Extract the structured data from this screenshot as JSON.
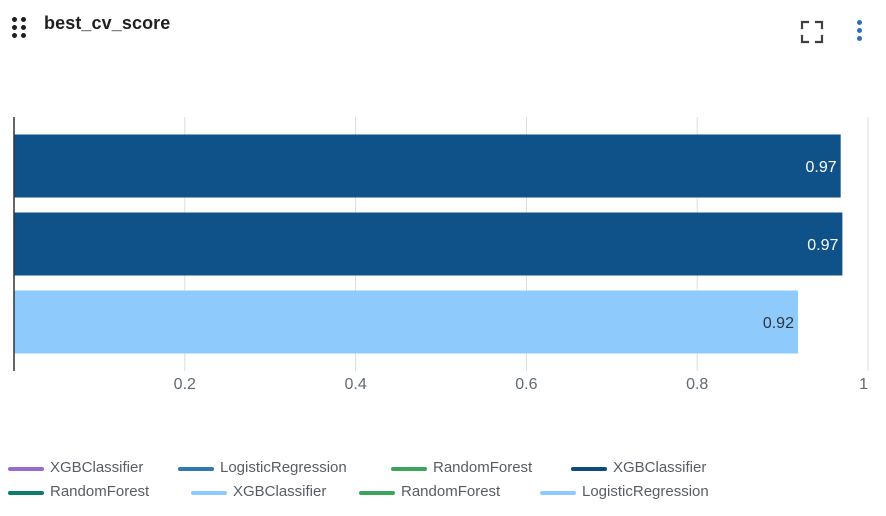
{
  "panel": {
    "title": "best_cv_score"
  },
  "colors": {
    "dark_blue": "#0f5189",
    "light_blue": "#8ecbfc"
  },
  "chart_data": {
    "type": "bar",
    "orientation": "horizontal",
    "xlim": [
      0,
      1
    ],
    "x_ticks": [
      "0.2",
      "0.4",
      "0.6",
      "0.8",
      "1"
    ],
    "x_tick_values": [
      0.2,
      0.4,
      0.6,
      0.8,
      1.0
    ],
    "grid": true,
    "bars": [
      {
        "value": 0.968,
        "label": "0.97",
        "color": "#0f5189"
      },
      {
        "value": 0.97,
        "label": "0.97",
        "color": "#0f5189"
      },
      {
        "value": 0.918,
        "label": "0.92",
        "color": "#8ecbfc"
      }
    ],
    "legend_position": "bottom",
    "legend": [
      {
        "name": "XGBClassifier",
        "color": "#9b6bcc"
      },
      {
        "name": "LogisticRegression",
        "color": "#2f77b5"
      },
      {
        "name": "RandomForest",
        "color": "#3ba55c"
      },
      {
        "name": "XGBClassifier",
        "color": "#0f4a7d"
      },
      {
        "name": "RandomForest",
        "color": "#0b7c6d"
      },
      {
        "name": "XGBClassifier",
        "color": "#8ecbfc"
      },
      {
        "name": "RandomForest",
        "color": "#3ba55c"
      },
      {
        "name": "LogisticRegression",
        "color": "#8ecbfc"
      }
    ]
  }
}
